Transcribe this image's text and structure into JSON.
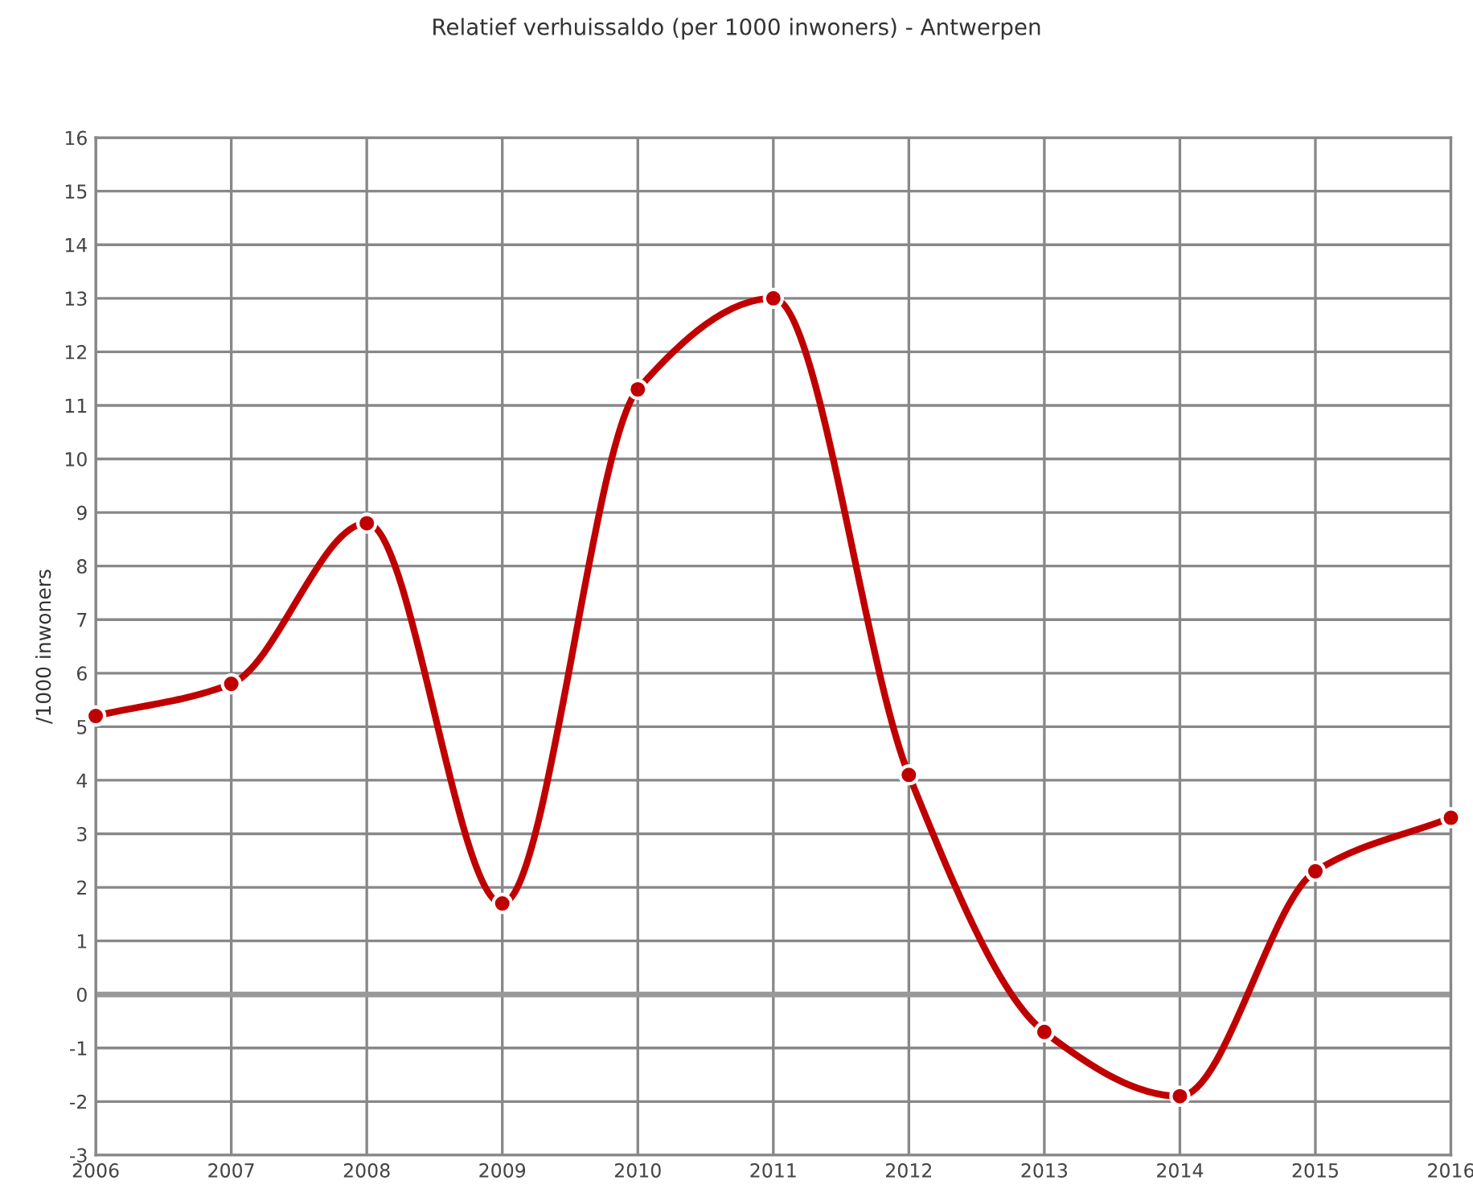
{
  "chart_data": {
    "type": "line",
    "title": "Relatief verhuissaldo (per 1000 inwoners) - Antwerpen",
    "ylabel": "/1000 inwoners",
    "x": [
      2006,
      2007,
      2008,
      2009,
      2010,
      2011,
      2012,
      2013,
      2014,
      2015,
      2016
    ],
    "series": [
      {
        "color": "#c00000",
        "values": [
          5.2,
          5.8,
          8.8,
          1.7,
          11.3,
          13.0,
          4.1,
          -0.7,
          -1.9,
          2.3,
          3.3
        ]
      }
    ],
    "xlim": [
      2006,
      2016
    ],
    "xticks": [
      2006,
      2007,
      2008,
      2009,
      2010,
      2011,
      2012,
      2013,
      2014,
      2015,
      2016
    ],
    "ylim": [
      -3,
      16
    ],
    "yticks": [
      -3,
      -2,
      -1,
      0,
      1,
      2,
      3,
      4,
      5,
      6,
      7,
      8,
      9,
      10,
      11,
      12,
      13,
      14,
      15,
      16
    ],
    "ref_lines": [
      {
        "axis": "y",
        "value": 0,
        "color": "#999999"
      }
    ],
    "grid": true,
    "marker": "circle",
    "line_style": "solid"
  }
}
